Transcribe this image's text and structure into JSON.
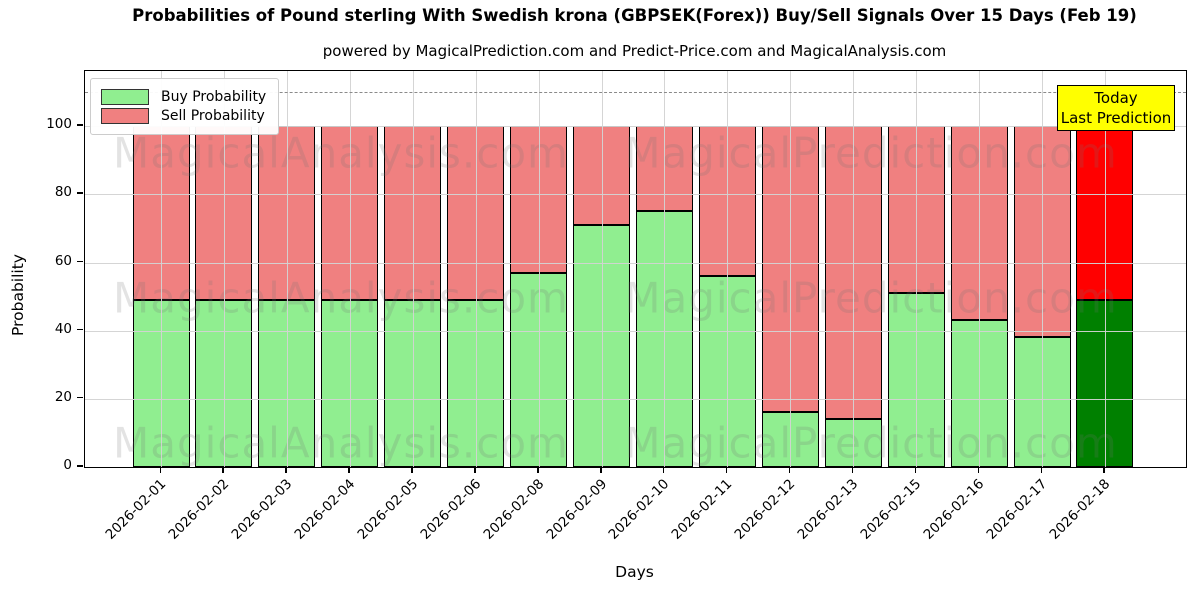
{
  "title": "Probabilities of Pound sterling With Swedish krona (GBPSEK(Forex)) Buy/Sell Signals Over 15 Days (Feb 19)",
  "subtitle": "powered by MagicalPrediction.com and Predict-Price.com and MagicalAnalysis.com",
  "xlabel": "Days",
  "ylabel": "Probability",
  "watermarks": [
    "MagicalAnalysis.com",
    "MagicalPrediction.com"
  ],
  "today_box": {
    "line1": "Today",
    "line2": "Last Prediction",
    "bg": "#ffff00"
  },
  "legend": [
    {
      "label": "Buy Probability",
      "color": "#90ee90"
    },
    {
      "label": "Sell Probability",
      "color": "#f08080"
    }
  ],
  "colors": {
    "buy": "#90ee90",
    "sell": "#f08080",
    "buy_today": "#008000",
    "sell_today": "#ff0000",
    "grid": "#d3d3d3",
    "dashed_line": "#8a8a8a",
    "bar_edge": "#000000"
  },
  "chart_data": {
    "type": "bar",
    "stacked": true,
    "title": "Probabilities of Pound sterling With Swedish krona (GBPSEK(Forex)) Buy/Sell Signals Over 15 Days (Feb 19)",
    "xlabel": "Days",
    "ylabel": "Probability",
    "categories": [
      "2026-02-01",
      "2026-02-02",
      "2026-02-03",
      "2026-02-04",
      "2026-02-05",
      "2026-02-06",
      "2026-02-08",
      "2026-02-09",
      "2026-02-10",
      "2026-02-11",
      "2026-02-12",
      "2026-02-13",
      "2026-02-15",
      "2026-02-16",
      "2026-02-17",
      "2026-02-18"
    ],
    "series": [
      {
        "name": "Buy Probability",
        "color": "#90ee90",
        "last_bar_color": "#008000",
        "values": [
          49,
          49,
          49,
          49,
          49,
          49,
          57,
          71,
          75,
          56,
          16,
          14,
          51,
          43,
          38,
          49
        ]
      },
      {
        "name": "Sell Probability",
        "color": "#f08080",
        "last_bar_color": "#ff0000",
        "values": [
          51,
          51,
          51,
          51,
          51,
          51,
          43,
          29,
          25,
          44,
          84,
          86,
          49,
          57,
          62,
          51
        ]
      }
    ],
    "yticks": [
      0,
      20,
      40,
      60,
      80,
      100
    ],
    "ylim": [
      0,
      116.2
    ],
    "grid": true,
    "dashed_line_y": 110,
    "legend_position": "upper left",
    "annotation": "Today Last Prediction (last bar highlighted)"
  }
}
